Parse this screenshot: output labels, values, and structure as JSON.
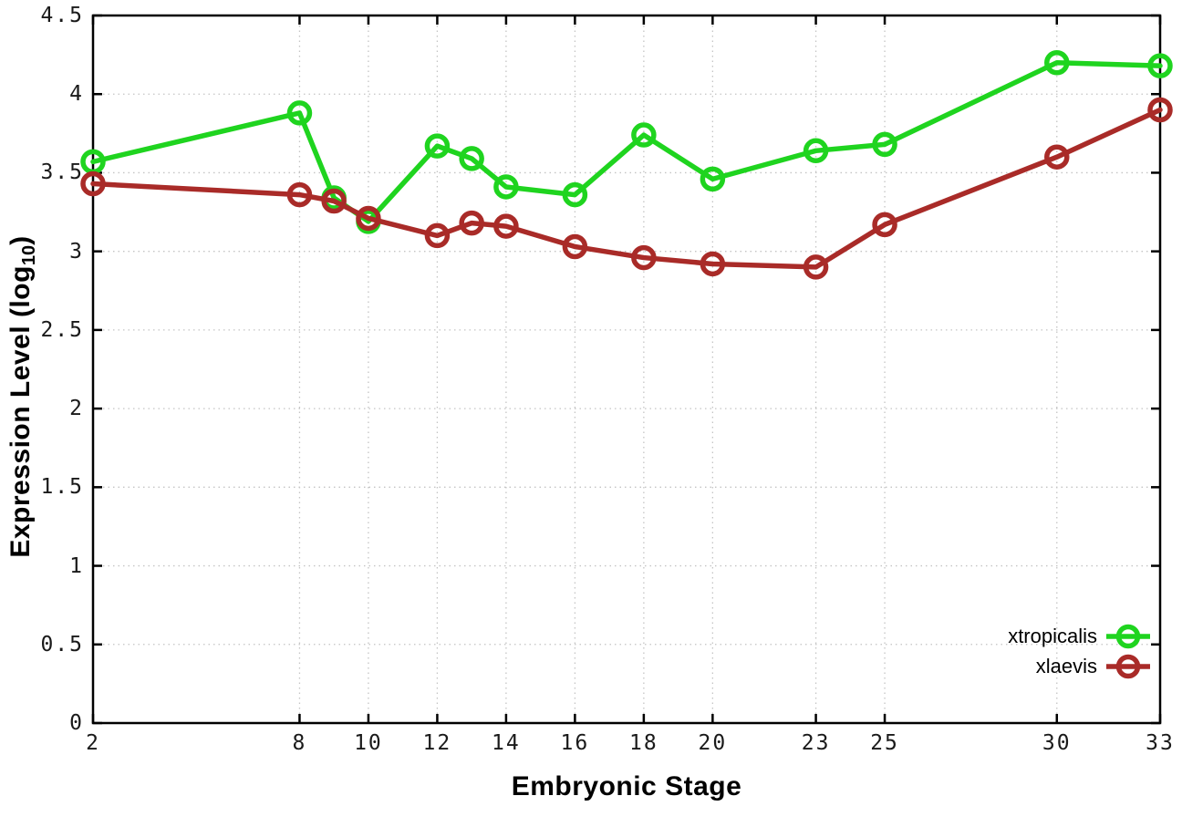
{
  "chart_data": {
    "type": "line",
    "title": "",
    "xlabel": "Embryonic Stage",
    "ylabel": "Expression Level (log10)",
    "ylabel_parts": {
      "base": "Expression Level (log",
      "sub": "10",
      "close": ")"
    },
    "xlim": [
      2,
      33
    ],
    "ylim": [
      0,
      4.5
    ],
    "grid": true,
    "legend_position": "bottom-right",
    "x_tick_values": [
      2,
      8,
      10,
      12,
      14,
      16,
      18,
      20,
      23,
      25,
      30,
      33
    ],
    "x_tick_labels": [
      "2",
      "8",
      "10",
      "12",
      "14",
      "16",
      "18",
      "20",
      "23",
      "25",
      "30",
      "33"
    ],
    "y_tick_values": [
      0,
      0.5,
      1,
      1.5,
      2,
      2.5,
      3,
      3.5,
      4,
      4.5
    ],
    "y_tick_labels": [
      "0",
      "0.5",
      "1",
      "1.5",
      "2",
      "2.5",
      "3",
      "3.5",
      "4",
      "4.5"
    ],
    "x": [
      2,
      8,
      9,
      10,
      12,
      13,
      14,
      16,
      18,
      20,
      23,
      25,
      30,
      33
    ],
    "series": [
      {
        "name": "xtropicalis",
        "color": "#1fd41f",
        "marker": "open-circle",
        "values": [
          3.57,
          3.88,
          3.34,
          3.19,
          3.67,
          3.59,
          3.41,
          3.36,
          3.74,
          3.46,
          3.64,
          3.68,
          4.2,
          4.18
        ]
      },
      {
        "name": "xlaevis",
        "color": "#a92b28",
        "marker": "open-circle",
        "values": [
          3.43,
          3.36,
          3.32,
          3.21,
          3.1,
          3.18,
          3.16,
          3.03,
          2.96,
          2.92,
          2.9,
          3.17,
          3.6,
          3.9
        ]
      }
    ],
    "style": {
      "grid_color": "#c4c4c4",
      "axis_color": "#000000",
      "background": "#ffffff"
    }
  }
}
